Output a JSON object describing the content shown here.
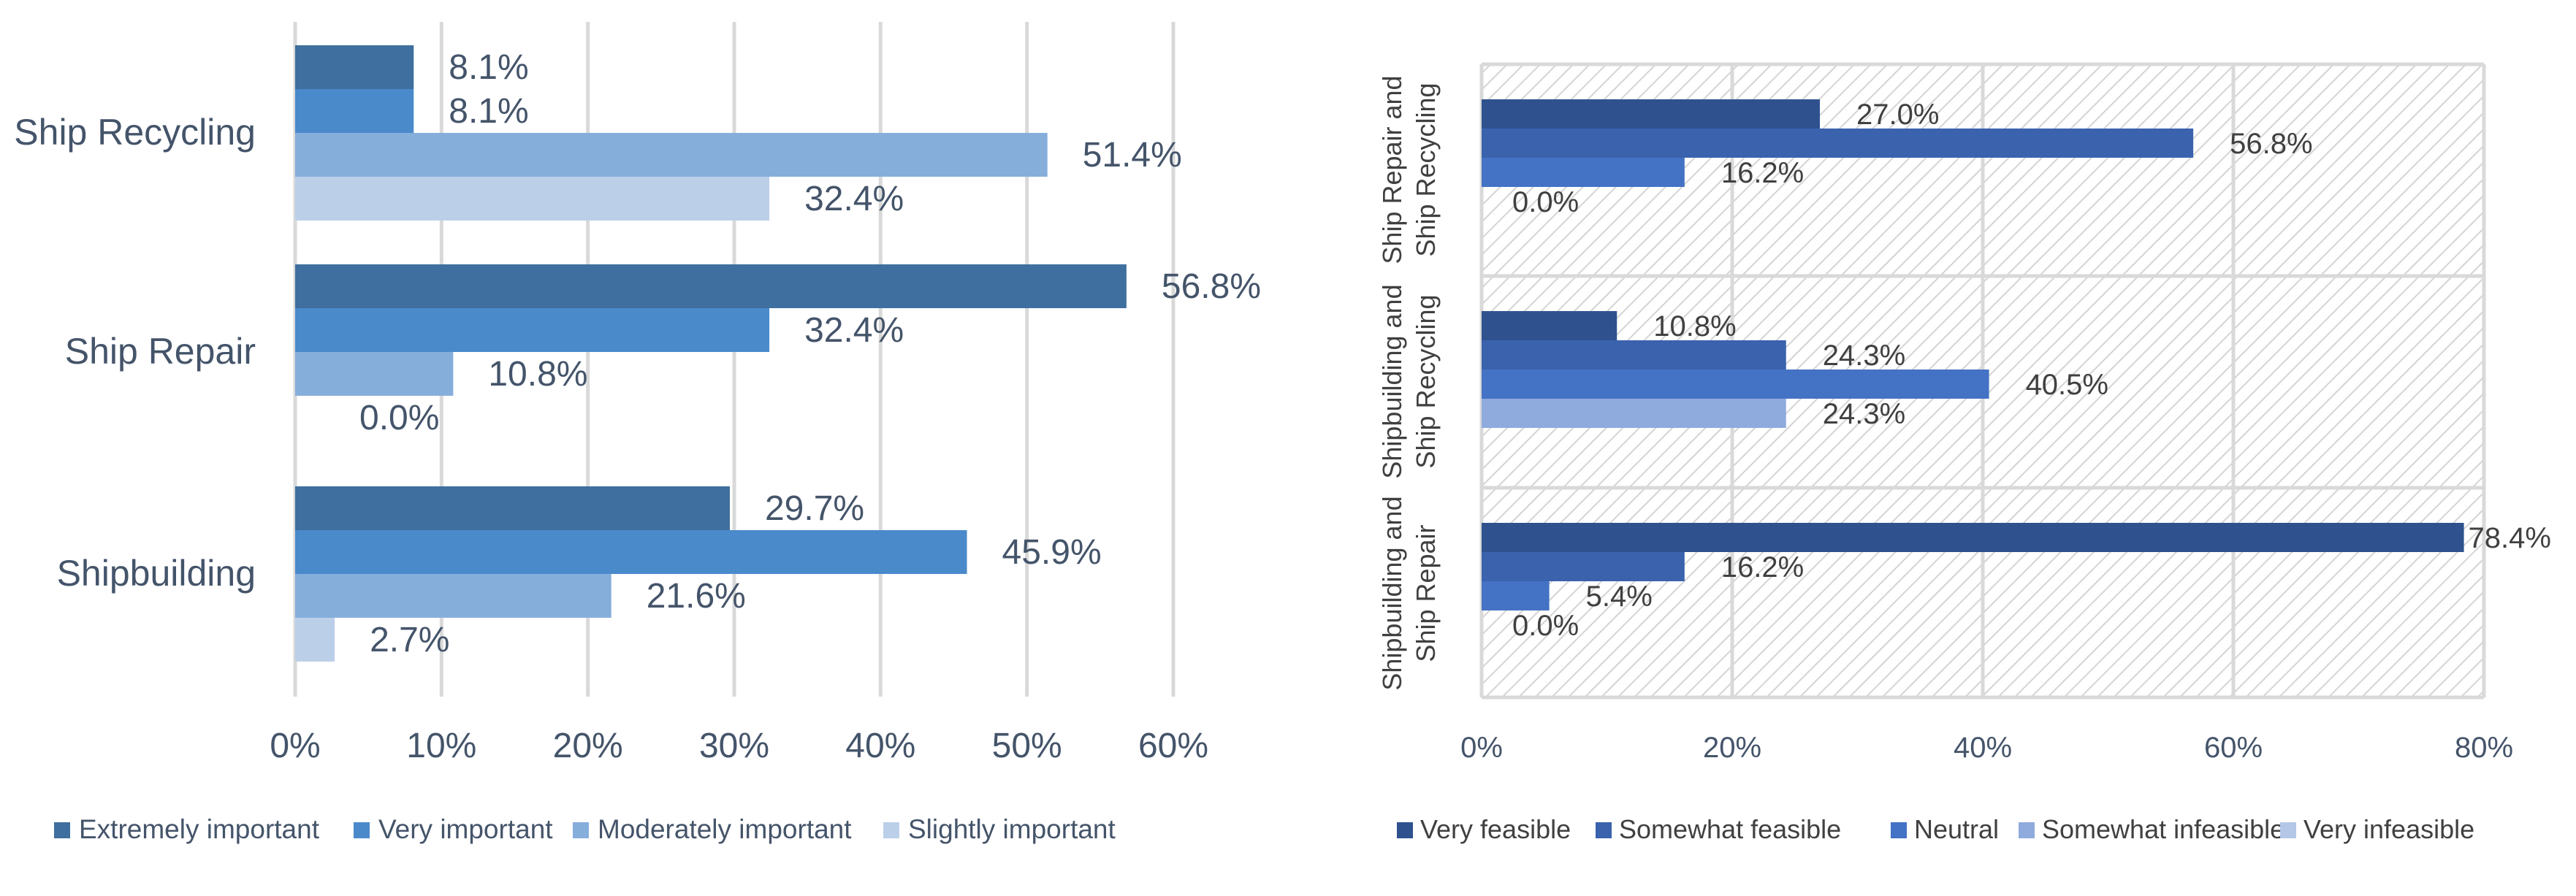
{
  "chart_data": [
    {
      "type": "bar",
      "orientation": "horizontal",
      "categories": [
        "Ship Recycling",
        "Ship Repair",
        "Shipbuilding"
      ],
      "series": [
        {
          "name": "Extremely important",
          "values": [
            8.1,
            56.8,
            29.7
          ],
          "color": "#3f6f9e"
        },
        {
          "name": "Very important",
          "values": [
            8.1,
            32.4,
            45.9
          ],
          "color": "#4a8acb"
        },
        {
          "name": "Moderately important",
          "values": [
            51.4,
            10.8,
            21.6
          ],
          "color": "#86aedb"
        },
        {
          "name": "Slightly important",
          "values": [
            32.4,
            0.0,
            2.7
          ],
          "color": "#bccfe9"
        }
      ],
      "value_labels": [
        [
          "8.1%",
          "56.8%",
          "29.7%"
        ],
        [
          "8.1%",
          "32.4%",
          "45.9%"
        ],
        [
          "51.4%",
          "10.8%",
          "21.6%"
        ],
        [
          "32.4%",
          "0.0%",
          "2.7%"
        ]
      ],
      "xlim": [
        0,
        60
      ],
      "xticks": [
        0,
        10,
        20,
        30,
        40,
        50,
        60
      ],
      "xtick_labels": [
        "0%",
        "10%",
        "20%",
        "30%",
        "40%",
        "50%",
        "60%"
      ],
      "grid": "vertical",
      "legend": "bottom"
    },
    {
      "type": "bar",
      "orientation": "horizontal",
      "categories": [
        "Ship Repair and Ship Recycling",
        "Shipbuilding and Ship Recycling",
        "Shipbuilding and Ship Repair"
      ],
      "category_lines": [
        [
          "Ship Repair and",
          "Ship Recycling"
        ],
        [
          "Shipbuilding and",
          "Ship Recycling"
        ],
        [
          "Shipbuilding and",
          "Ship Repair"
        ]
      ],
      "series": [
        {
          "name": "Very feasible",
          "values": [
            27.0,
            10.8,
            78.4
          ],
          "color": "#2f528f"
        },
        {
          "name": "Somewhat feasible",
          "values": [
            56.8,
            24.3,
            16.2
          ],
          "color": "#3a62ad"
        },
        {
          "name": "Neutral",
          "values": [
            16.2,
            40.5,
            5.4
          ],
          "color": "#4472c4"
        },
        {
          "name": "Somewhat infeasible",
          "values": [
            0.0,
            24.3,
            0.0
          ],
          "color": "#8faadc"
        },
        {
          "name": "Very infeasible",
          "values": [
            null,
            null,
            null
          ],
          "color": "#b4c7e7"
        }
      ],
      "value_labels": [
        [
          "27.0%",
          "10.8%",
          "78.4%"
        ],
        [
          "56.8%",
          "24.3%",
          "16.2%"
        ],
        [
          "16.2%",
          "40.5%",
          "5.4%"
        ],
        [
          "0.0%",
          "24.3%",
          "0.0%"
        ],
        [
          "",
          "",
          ""
        ]
      ],
      "xlim": [
        0,
        80
      ],
      "xticks": [
        0,
        20,
        40,
        60,
        80
      ],
      "xtick_labels": [
        "0%",
        "20%",
        "40%",
        "60%",
        "80%"
      ],
      "grid": "vertical-and-category-bands",
      "plot_background": "hatched",
      "legend": "bottom"
    }
  ]
}
